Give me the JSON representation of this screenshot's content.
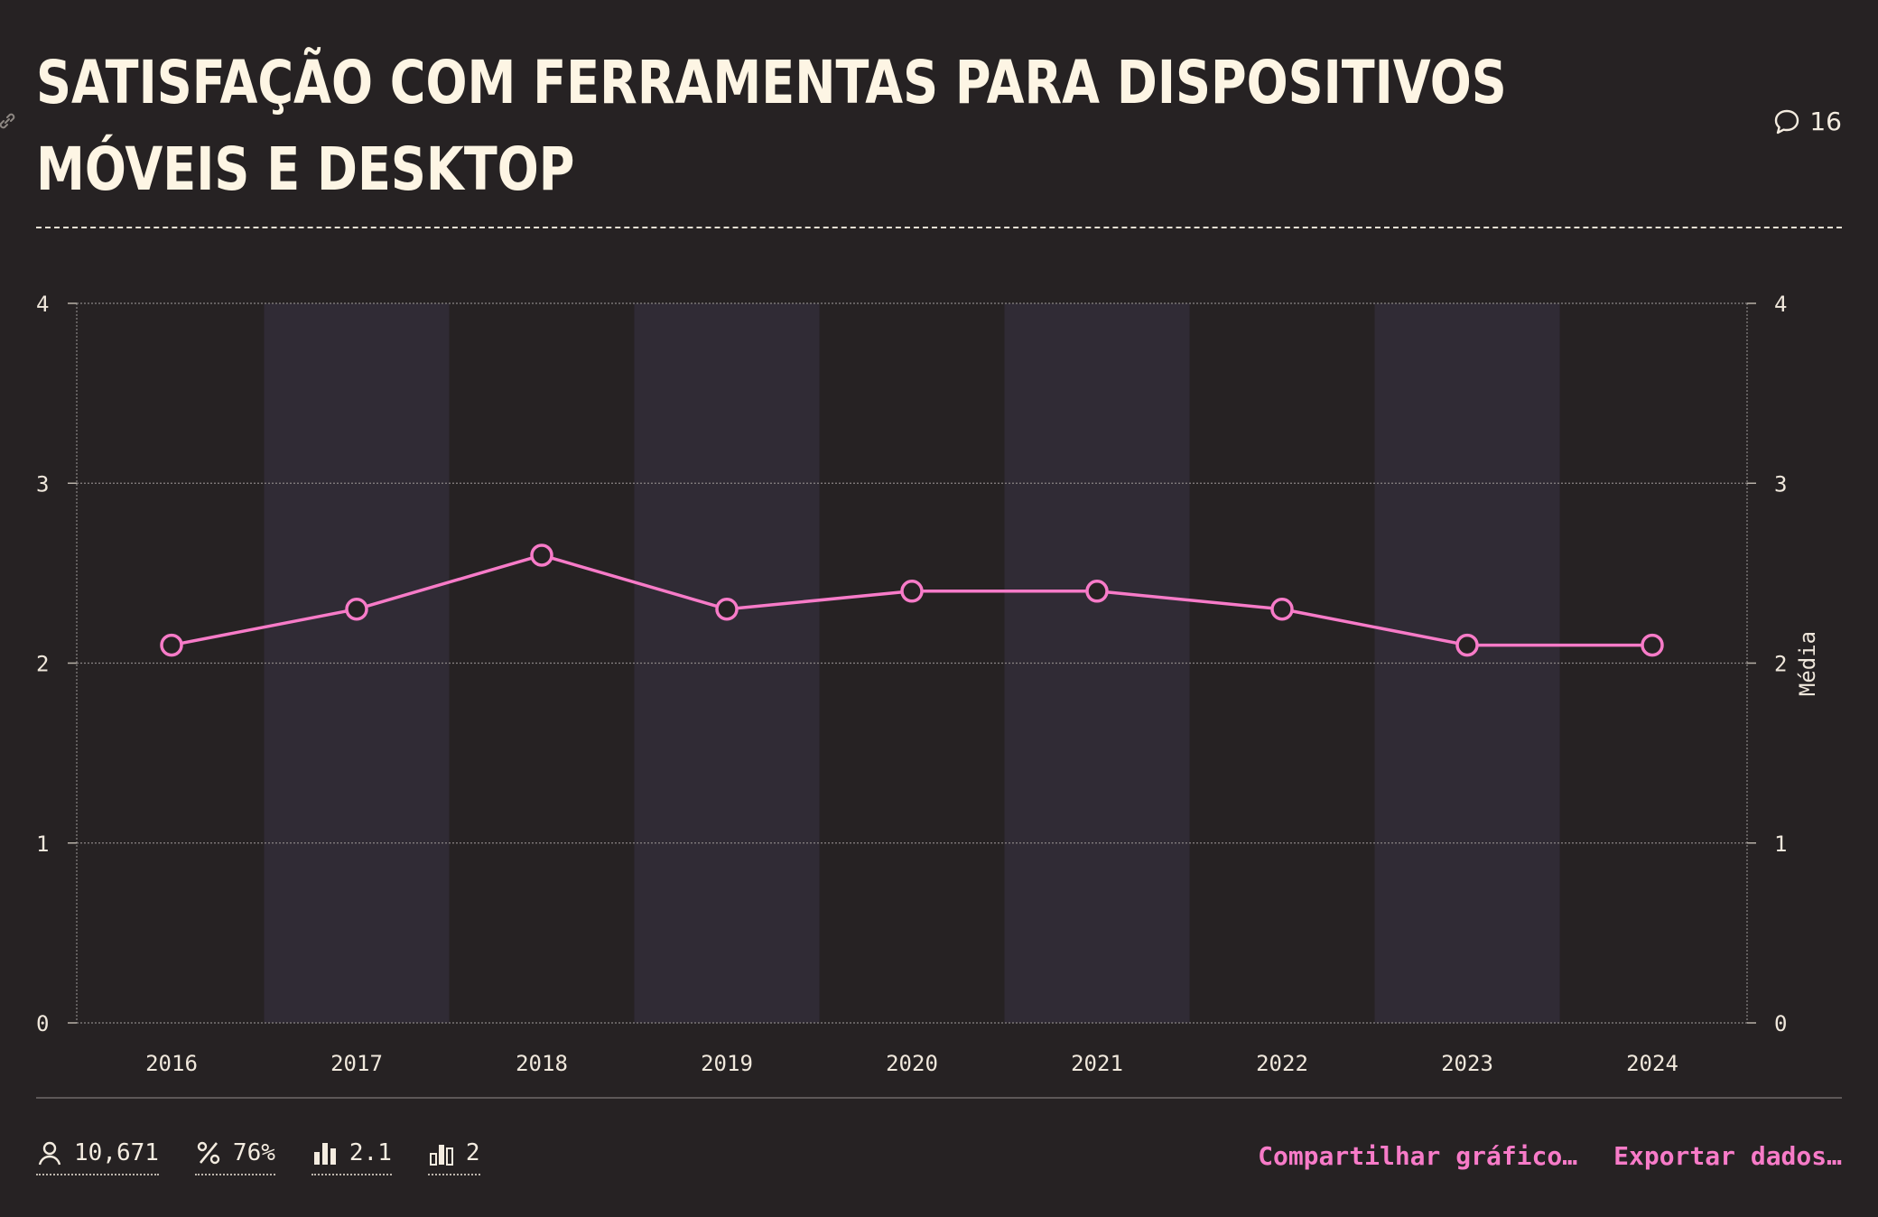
{
  "header": {
    "title": "SATISFAÇÃO COM FERRAMENTAS PARA DISPOSITIVOS MÓVEIS E DESKTOP",
    "comment_count": "16"
  },
  "stats": [
    {
      "icon": "user-icon",
      "value": "10,671"
    },
    {
      "icon": "percent-icon",
      "value": "76%"
    },
    {
      "icon": "bar-chart-icon",
      "value": "2.1"
    },
    {
      "icon": "bar-chart-alt-icon",
      "value": "2"
    }
  ],
  "actions": {
    "share_label": "Compartilhar gráfico…",
    "export_label": "Exportar dados…"
  },
  "colors": {
    "background": "#262223",
    "band": "#302b35",
    "line": "#f77bc8",
    "text": "#fdf5e4",
    "accent": "#f77bc8"
  },
  "chart_data": {
    "type": "line",
    "categories": [
      "2016",
      "2017",
      "2018",
      "2019",
      "2020",
      "2021",
      "2022",
      "2023",
      "2024"
    ],
    "values": [
      2.1,
      2.3,
      2.6,
      2.3,
      2.4,
      2.4,
      2.3,
      2.1,
      2.1
    ],
    "ylim": [
      0,
      4
    ],
    "yticks": [
      0,
      1,
      2,
      3,
      4
    ],
    "ylabel_right": "Média",
    "grid": true,
    "alternating_bands": true
  }
}
